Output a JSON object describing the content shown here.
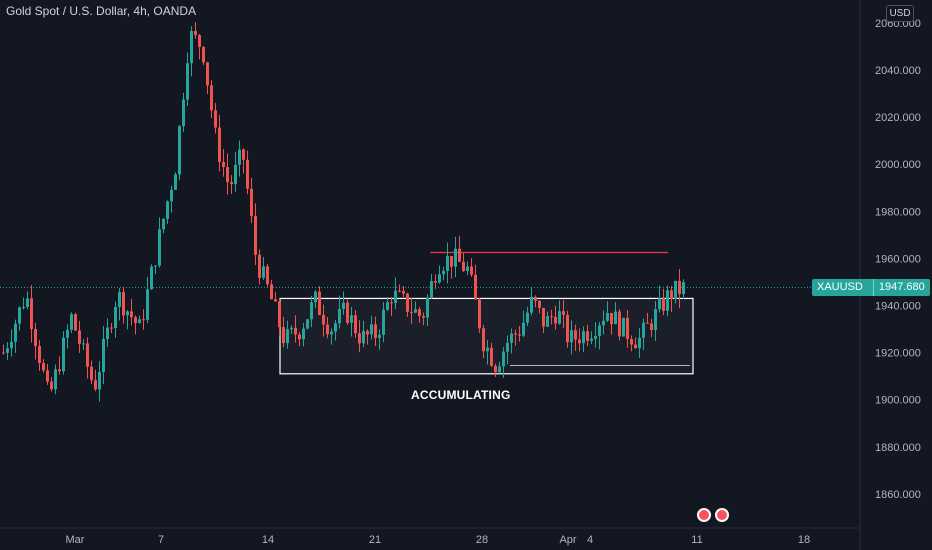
{
  "header": {
    "title": "Gold Spot / U.S. Dollar, 4h, OANDA",
    "currency": "USD"
  },
  "price_tag": {
    "symbol": "XAUUSD",
    "price": "1947.680"
  },
  "annotation": {
    "text": "ACCUMULATING"
  },
  "chart_data": {
    "type": "candlestick",
    "title": "Gold Spot / U.S. Dollar, 4h, OANDA",
    "currency": "USD",
    "y_ticks": [
      "1860.000",
      "1880.000",
      "1900.000",
      "1920.000",
      "1940.000",
      "1960.000",
      "1980.000",
      "2000.000",
      "2020.000",
      "2040.000",
      "2060.000"
    ],
    "x_ticks": [
      "Mar",
      "7",
      "14",
      "21",
      "28",
      "Apr",
      "4",
      "11",
      "18"
    ],
    "ylim": [
      1840,
      2066
    ],
    "grid": false,
    "last_price": 1947.68,
    "colors": {
      "up": "#26a69a",
      "down": "#ef5350"
    },
    "close_path": [
      [
        "Mar",
        1920
      ],
      [
        "",
        1945
      ],
      [
        "",
        1900
      ],
      [
        "",
        1935
      ],
      [
        "",
        1905
      ],
      [
        "",
        1945
      ],
      [
        "",
        1930
      ],
      [
        "7",
        1975
      ],
      [
        "",
        2000
      ],
      [
        "",
        2055
      ],
      [
        "",
        2050
      ],
      [
        "",
        2010
      ],
      [
        "",
        1990
      ],
      [
        "",
        2005
      ],
      [
        "",
        1960
      ],
      [
        "14",
        1945
      ],
      [
        "",
        1925
      ],
      [
        "",
        1930
      ],
      [
        "",
        1942
      ],
      [
        "",
        1930
      ],
      [
        "",
        1938
      ],
      [
        "",
        1926
      ],
      [
        "21",
        1928
      ],
      [
        "",
        1945
      ],
      [
        "",
        1940
      ],
      [
        "",
        1935
      ],
      [
        "",
        1958
      ],
      [
        "",
        1960
      ],
      [
        "",
        1955
      ],
      [
        "28",
        1925
      ],
      [
        "",
        1915
      ],
      [
        "",
        1925
      ],
      [
        "",
        1930
      ],
      [
        "",
        1942
      ],
      [
        "",
        1932
      ],
      [
        "",
        1938
      ],
      [
        "Apr",
        1925
      ],
      [
        "4",
        1930
      ],
      [
        "",
        1938
      ],
      [
        "",
        1930
      ],
      [
        "",
        1925
      ],
      [
        "",
        1935
      ],
      [
        "",
        1945
      ],
      [
        "11",
        1947.68
      ]
    ],
    "annotations": {
      "range_box_price": [
        1911,
        1943
      ],
      "resistance_line_price": 1962.5,
      "support_line_price": 1914.5,
      "label": "ACCUMULATING"
    }
  }
}
